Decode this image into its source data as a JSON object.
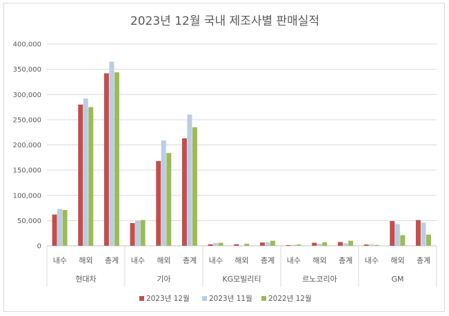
{
  "chart_data": {
    "type": "bar",
    "title": "2023년 12월 국내 제조사별 판매실적",
    "ylim": [
      0,
      400000
    ],
    "y_ticks": [
      "0",
      "50,000",
      "100,000",
      "150,000",
      "200,000",
      "250,000",
      "300,000",
      "350,000",
      "400,000"
    ],
    "groups": [
      "현대차",
      "기아",
      "KG모빌리티",
      "르노코리아",
      "GM"
    ],
    "subcategories": [
      "내수",
      "해외",
      "총계"
    ],
    "categories": [
      "현대차 내수",
      "현대차 해외",
      "현대차 총계",
      "기아 내수",
      "기아 해외",
      "기아 총계",
      "KG모빌리티 내수",
      "KG모빌리티 해외",
      "KG모빌리티 총계",
      "르노코리아 내수",
      "르노코리아 해외",
      "르노코리아 총계",
      "GM 내수",
      "GM 해외",
      "GM 총계"
    ],
    "series": [
      {
        "name": "2023년 12월",
        "color": "#c0504d",
        "values": [
          62000,
          280000,
          342000,
          45000,
          168000,
          213000,
          3000,
          3000,
          6500,
          1500,
          6000,
          7500,
          2500,
          49000,
          51000
        ]
      },
      {
        "name": "2023년 11월",
        "color": "#b9cde5",
        "values": [
          73000,
          292000,
          365000,
          50000,
          209000,
          260000,
          5500,
          1000,
          7000,
          2000,
          4000,
          5000,
          3000,
          43000,
          46000
        ]
      },
      {
        "name": "2022년 12월",
        "color": "#9bbb59",
        "values": [
          71000,
          275000,
          344000,
          51000,
          184000,
          235000,
          6000,
          4000,
          10000,
          2500,
          7000,
          10000,
          1500,
          21000,
          22000
        ]
      }
    ],
    "grid": true,
    "legend_position": "bottom"
  }
}
